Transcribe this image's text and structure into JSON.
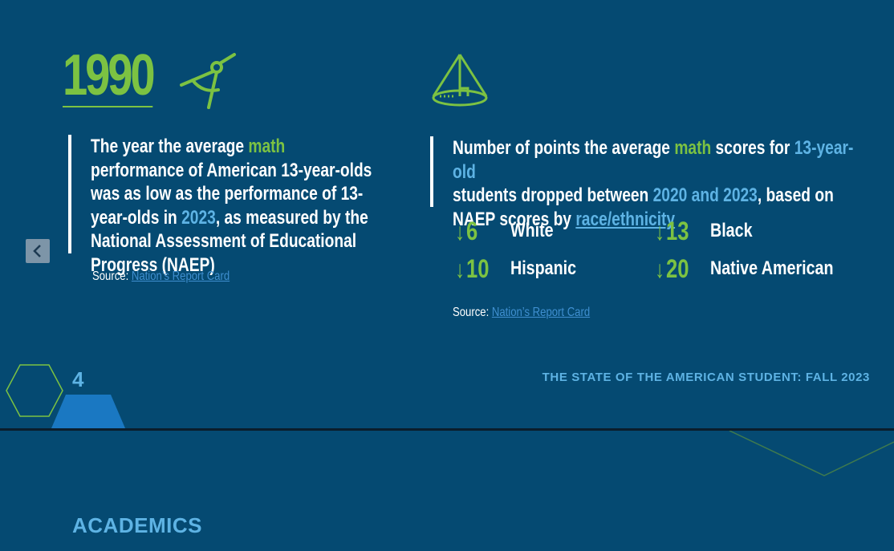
{
  "colors": {
    "background": "#054a72",
    "accent_green": "#7cc242",
    "accent_blue": "#5eb3e4"
  },
  "left_panel": {
    "big_year": "1990",
    "icon": "compass-icon",
    "text": {
      "part1": "The year the average ",
      "math": "math",
      "part2": " performance of American 13-year-olds was as low as the performance of 13-year-olds in ",
      "year": "2023",
      "part3": ", as measured by the National Assessment of Educational Progress (NAEP)"
    },
    "source_label": "Source:",
    "source_link": "Nation’s Report Card"
  },
  "right_panel": {
    "icon": "cone-icon",
    "text": {
      "part1": "Number of points the average ",
      "math": "math",
      "part2": " scores for ",
      "age": "13-year-old",
      "part3": " students dropped between ",
      "years": "2020 and 2023",
      "part4": ", based on NAEP scores by ",
      "link": "race/ethnicity"
    },
    "stats": [
      {
        "arrow": "↓",
        "value": "6",
        "label": "White"
      },
      {
        "arrow": "↓",
        "value": "13",
        "label": "Black"
      },
      {
        "arrow": "↓",
        "value": "10",
        "label": "Hispanic"
      },
      {
        "arrow": "↓",
        "value": "20",
        "label": "Native American"
      }
    ],
    "source_label": "Source:",
    "source_link": "Nation’s Report Card"
  },
  "footer": {
    "page_number": "4",
    "report_title": "THE STATE OF THE AMERICAN STUDENT: FALL 2023"
  },
  "next_page": {
    "section_title": "ACADEMICS"
  },
  "nav": {
    "prev_icon": "chevron-left-icon"
  }
}
